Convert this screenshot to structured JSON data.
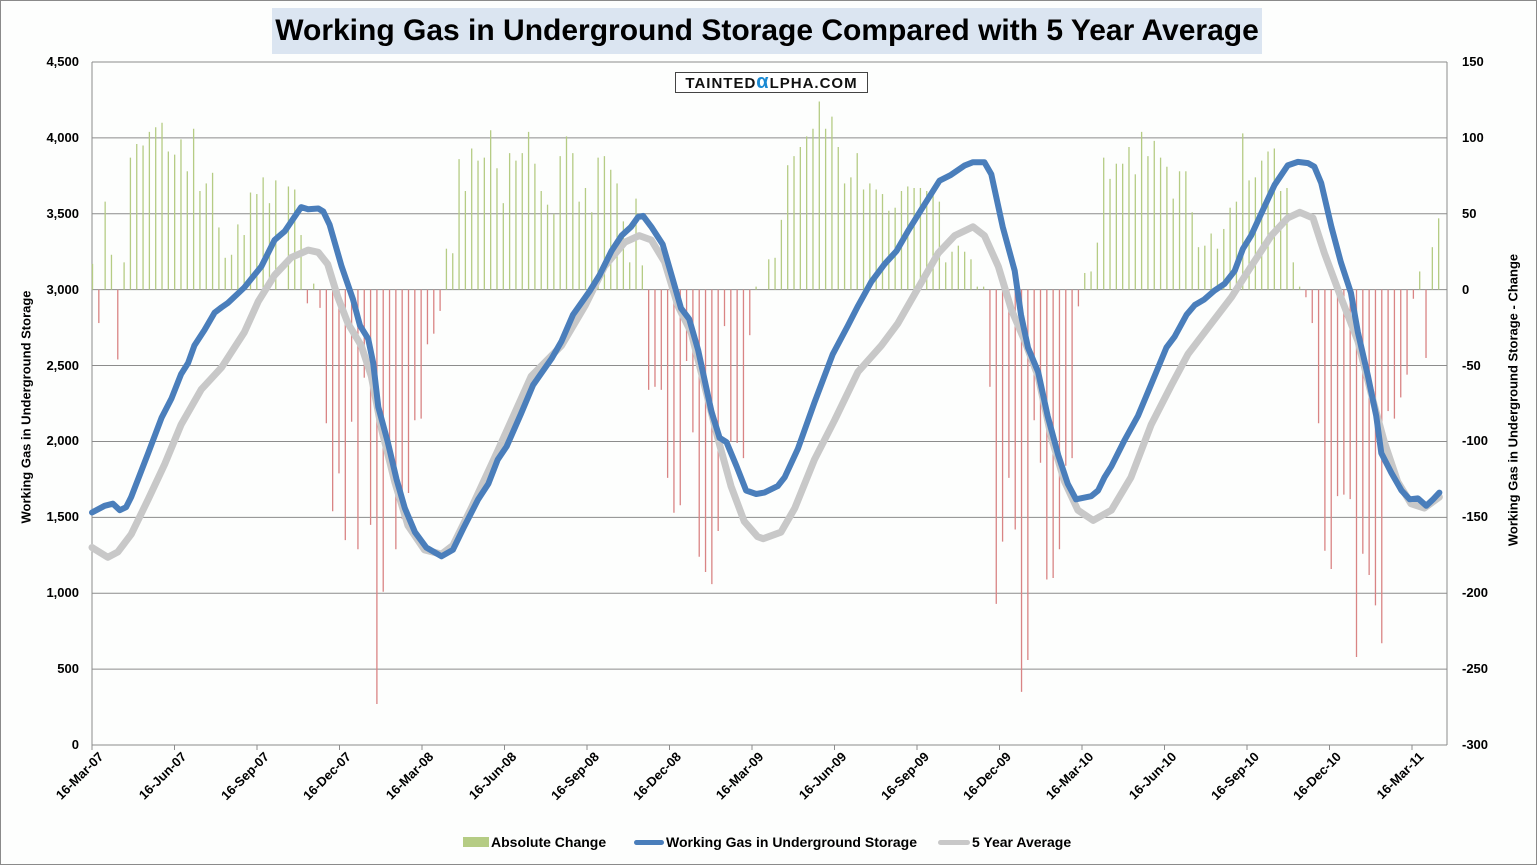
{
  "chart_data": {
    "type": "line",
    "title": "Working Gas in Underground Storage Compared with 5 Year Average",
    "watermark": "TAINTEDαLPHA.COM",
    "xlabel": "",
    "x_unit": "weeks since 16-Mar-07",
    "ylabel": "Working Gas in Underground Storage",
    "ylabel_right": "Working Gas in Underground Storage - Change",
    "ylim": [
      0,
      4500
    ],
    "ylim_right": [
      -300,
      150
    ],
    "y_ticks": [
      "0",
      "500",
      "1,000",
      "1,500",
      "2,000",
      "2,500",
      "3,000",
      "3,500",
      "4,000",
      "4,500"
    ],
    "y_ticks_right": [
      "-300",
      "-250",
      "-200",
      "-150",
      "-100",
      "-50",
      "0",
      "50",
      "100",
      "150"
    ],
    "x_ticks": [
      "16-Mar-07",
      "16-Jun-07",
      "16-Sep-07",
      "16-Dec-07",
      "16-Mar-08",
      "16-Jun-08",
      "16-Sep-08",
      "16-Dec-08",
      "16-Mar-09",
      "16-Jun-09",
      "16-Sep-09",
      "16-Dec-09",
      "16-Mar-10",
      "16-Jun-10",
      "16-Sep-10",
      "16-Dec-10",
      "16-Mar-11"
    ],
    "grid": true,
    "legend_position": "bottom",
    "colors": {
      "change_pos": "#b5cc84",
      "change_neg": "#d98484",
      "storage": "#4a7ebb",
      "average": "#c8c8c8",
      "title_bg": "#dbe5f1"
    },
    "series": [
      {
        "name": "Absolute Change",
        "type": "bar",
        "axis": "right",
        "values": [
          17,
          -22,
          58,
          23,
          -46,
          18,
          87,
          96,
          95,
          104,
          107,
          110,
          91,
          89,
          99,
          78,
          106,
          65,
          70,
          77,
          41,
          21,
          23,
          43,
          36,
          64,
          63,
          74,
          57,
          72,
          0,
          68,
          66,
          36,
          -9,
          4,
          -12,
          -88,
          -146,
          -121,
          -165,
          -87,
          -171,
          -58,
          -155,
          -273,
          -199,
          -120,
          -171,
          -151,
          -134,
          -86,
          -85,
          -36,
          -29,
          -14,
          27,
          24,
          86,
          65,
          93,
          85,
          87,
          105,
          80,
          57,
          90,
          85,
          90,
          104,
          83,
          65,
          56,
          50,
          88,
          101,
          90,
          58,
          67,
          51,
          87,
          88,
          79,
          70,
          45,
          18,
          60,
          16,
          -66,
          -64,
          -66,
          -124,
          -147,
          -142,
          -47,
          -94,
          -176,
          -186,
          -194,
          -159,
          -24,
          -100,
          -101,
          -111,
          -30,
          2,
          0,
          20,
          21,
          46,
          82,
          88,
          94,
          101,
          106,
          124,
          106,
          114,
          94,
          70,
          74,
          90,
          66,
          70,
          66,
          63,
          52,
          54,
          65,
          68,
          67,
          67,
          65,
          63,
          58,
          18,
          25,
          29,
          25,
          20,
          2,
          2,
          -64,
          -207,
          -166,
          -124,
          -158,
          -265,
          -244,
          -86,
          -114,
          -191,
          -190,
          -171,
          -116,
          -111,
          -11,
          11,
          12,
          31,
          87,
          73,
          83,
          83,
          94,
          76,
          104,
          88,
          98,
          87,
          81,
          60,
          78,
          78,
          51,
          28,
          29,
          37,
          27,
          40,
          54,
          58,
          103,
          72,
          74,
          85,
          91,
          93,
          65,
          67,
          18,
          2,
          -5,
          -22,
          -88,
          -172,
          -184,
          -136,
          -135,
          -138,
          -242,
          -174,
          -188,
          -208,
          -233,
          -80,
          -85,
          -71,
          -56,
          -6,
          12,
          -45,
          28,
          47
        ]
      },
      {
        "name": "Working Gas in Underground Storage",
        "type": "line",
        "axis": "left",
        "points": [
          [
            0,
            1532
          ],
          [
            2,
            1576
          ],
          [
            3.3,
            1590
          ],
          [
            4.4,
            1547
          ],
          [
            5.4,
            1567
          ],
          [
            6.2,
            1634
          ],
          [
            8.9,
            1923
          ],
          [
            11,
            2155
          ],
          [
            12.6,
            2285
          ],
          [
            14.1,
            2444
          ],
          [
            15.2,
            2517
          ],
          [
            16.2,
            2632
          ],
          [
            17.8,
            2734
          ],
          [
            19.4,
            2849
          ],
          [
            20.5,
            2884
          ],
          [
            21.5,
            2913
          ],
          [
            24.1,
            3014
          ],
          [
            26.8,
            3153
          ],
          [
            28.9,
            3327
          ],
          [
            30.5,
            3385
          ],
          [
            33.1,
            3544
          ],
          [
            34.2,
            3530
          ],
          [
            35.8,
            3535
          ],
          [
            36.6,
            3515
          ],
          [
            37.6,
            3428
          ],
          [
            39.5,
            3153
          ],
          [
            41.3,
            2936
          ],
          [
            42.4,
            2763
          ],
          [
            43.7,
            2676
          ],
          [
            44.5,
            2517
          ],
          [
            45.3,
            2227
          ],
          [
            46.8,
            1995
          ],
          [
            48.2,
            1749
          ],
          [
            49.5,
            1561
          ],
          [
            51.1,
            1402
          ],
          [
            52.9,
            1301
          ],
          [
            55.3,
            1243
          ],
          [
            57.1,
            1286
          ],
          [
            58.8,
            1431
          ],
          [
            61.1,
            1619
          ],
          [
            62.7,
            1720
          ],
          [
            64.2,
            1880
          ],
          [
            65.6,
            1967
          ],
          [
            67.9,
            2184
          ],
          [
            69.8,
            2372
          ],
          [
            72.7,
            2545
          ],
          [
            74.3,
            2661
          ],
          [
            76.1,
            2835
          ],
          [
            78.8,
            2994
          ],
          [
            80.3,
            3095
          ],
          [
            82.2,
            3255
          ],
          [
            83.8,
            3356
          ],
          [
            85.3,
            3414
          ],
          [
            86.4,
            3478
          ],
          [
            87.2,
            3486
          ],
          [
            88.5,
            3414
          ],
          [
            90.3,
            3298
          ],
          [
            91.9,
            3067
          ],
          [
            93.2,
            2878
          ],
          [
            94.5,
            2806
          ],
          [
            95.9,
            2603
          ],
          [
            98,
            2198
          ],
          [
            99.3,
            2024
          ],
          [
            100.4,
            1995
          ],
          [
            102,
            1836
          ],
          [
            103.5,
            1677
          ],
          [
            105.1,
            1654
          ],
          [
            106.4,
            1663
          ],
          [
            108.5,
            1706
          ],
          [
            109.6,
            1764
          ],
          [
            111.7,
            1952
          ],
          [
            114.3,
            2256
          ],
          [
            117.2,
            2574
          ],
          [
            119.6,
            2763
          ],
          [
            121.2,
            2893
          ],
          [
            123.3,
            3052
          ],
          [
            125.4,
            3168
          ],
          [
            127.3,
            3255
          ],
          [
            129.1,
            3385
          ],
          [
            131.7,
            3559
          ],
          [
            134.1,
            3718
          ],
          [
            135.9,
            3756
          ],
          [
            138.1,
            3819
          ],
          [
            139.4,
            3840
          ],
          [
            141.2,
            3840
          ],
          [
            142.3,
            3761
          ],
          [
            144.1,
            3414
          ],
          [
            146,
            3124
          ],
          [
            147,
            2835
          ],
          [
            148.1,
            2618
          ],
          [
            149.7,
            2459
          ],
          [
            151.2,
            2169
          ],
          [
            152.9,
            1909
          ],
          [
            154.4,
            1720
          ],
          [
            155.7,
            1619
          ],
          [
            158.1,
            1639
          ],
          [
            159.2,
            1677
          ],
          [
            160.2,
            1764
          ],
          [
            161.3,
            1836
          ],
          [
            163.4,
            2010
          ],
          [
            165.5,
            2169
          ],
          [
            167.1,
            2328
          ],
          [
            168.7,
            2488
          ],
          [
            170,
            2618
          ],
          [
            171.3,
            2690
          ],
          [
            173.2,
            2835
          ],
          [
            174.5,
            2899
          ],
          [
            176,
            2936
          ],
          [
            177.6,
            2994
          ],
          [
            179.2,
            3038
          ],
          [
            180.8,
            3124
          ],
          [
            182.1,
            3269
          ],
          [
            183.4,
            3356
          ],
          [
            185,
            3501
          ],
          [
            187.1,
            3689
          ],
          [
            189.2,
            3819
          ],
          [
            190.8,
            3842
          ],
          [
            192.4,
            3834
          ],
          [
            193.4,
            3811
          ],
          [
            194.5,
            3703
          ],
          [
            196.1,
            3414
          ],
          [
            197.6,
            3182
          ],
          [
            199.2,
            2980
          ],
          [
            200.3,
            2719
          ],
          [
            201.9,
            2430
          ],
          [
            203.2,
            2169
          ],
          [
            204,
            1923
          ],
          [
            205.6,
            1793
          ],
          [
            207.2,
            1677
          ],
          [
            208.5,
            1619
          ],
          [
            209.8,
            1625
          ],
          [
            211.1,
            1576
          ],
          [
            212.2,
            1619
          ],
          [
            213.2,
            1663
          ]
        ]
      },
      {
        "name": "5 Year Average",
        "type": "line",
        "axis": "left",
        "points": [
          [
            0,
            1301
          ],
          [
            2.5,
            1237
          ],
          [
            4.1,
            1272
          ],
          [
            6.2,
            1388
          ],
          [
            8.9,
            1619
          ],
          [
            11.5,
            1851
          ],
          [
            14.1,
            2111
          ],
          [
            17.3,
            2343
          ],
          [
            20.5,
            2488
          ],
          [
            24.1,
            2719
          ],
          [
            26.3,
            2922
          ],
          [
            28.9,
            3095
          ],
          [
            31.5,
            3211
          ],
          [
            34.2,
            3261
          ],
          [
            35.8,
            3246
          ],
          [
            37.3,
            3168
          ],
          [
            38.9,
            2951
          ],
          [
            40.5,
            2777
          ],
          [
            42.6,
            2632
          ],
          [
            44.2,
            2430
          ],
          [
            45.8,
            2082
          ],
          [
            47.9,
            1735
          ],
          [
            50,
            1445
          ],
          [
            52.6,
            1286
          ],
          [
            55.3,
            1257
          ],
          [
            57.1,
            1315
          ],
          [
            60,
            1560
          ],
          [
            64.2,
            1938
          ],
          [
            69.5,
            2430
          ],
          [
            74.3,
            2632
          ],
          [
            78,
            2893
          ],
          [
            81.1,
            3153
          ],
          [
            84.3,
            3313
          ],
          [
            86.6,
            3356
          ],
          [
            88.5,
            3327
          ],
          [
            90.6,
            3182
          ],
          [
            92.7,
            2893
          ],
          [
            94.8,
            2719
          ],
          [
            96.9,
            2372
          ],
          [
            99,
            2024
          ],
          [
            101.1,
            1706
          ],
          [
            103.2,
            1474
          ],
          [
            105.3,
            1373
          ],
          [
            106.2,
            1359
          ],
          [
            109,
            1402
          ],
          [
            111.2,
            1561
          ],
          [
            114.3,
            1880
          ],
          [
            117.5,
            2140
          ],
          [
            121.2,
            2459
          ],
          [
            124.9,
            2632
          ],
          [
            127.5,
            2777
          ],
          [
            130.7,
            3009
          ],
          [
            133.9,
            3240
          ],
          [
            136.5,
            3356
          ],
          [
            139.4,
            3414
          ],
          [
            141.2,
            3356
          ],
          [
            143.4,
            3153
          ],
          [
            145.5,
            2864
          ],
          [
            147.6,
            2661
          ],
          [
            149.7,
            2430
          ],
          [
            151.8,
            2024
          ],
          [
            153.9,
            1735
          ],
          [
            156,
            1547
          ],
          [
            158.4,
            1480
          ],
          [
            161.3,
            1547
          ],
          [
            164.4,
            1764
          ],
          [
            167.6,
            2111
          ],
          [
            170.8,
            2372
          ],
          [
            173.4,
            2574
          ],
          [
            177.1,
            2777
          ],
          [
            180.3,
            2951
          ],
          [
            183.4,
            3153
          ],
          [
            186.6,
            3356
          ],
          [
            189.2,
            3472
          ],
          [
            191.1,
            3510
          ],
          [
            193.2,
            3472
          ],
          [
            195,
            3240
          ],
          [
            197.6,
            2951
          ],
          [
            200.3,
            2661
          ],
          [
            202.4,
            2314
          ],
          [
            204.5,
            1995
          ],
          [
            206.6,
            1735
          ],
          [
            208.7,
            1590
          ],
          [
            210.8,
            1561
          ],
          [
            213.2,
            1634
          ]
        ]
      }
    ]
  }
}
